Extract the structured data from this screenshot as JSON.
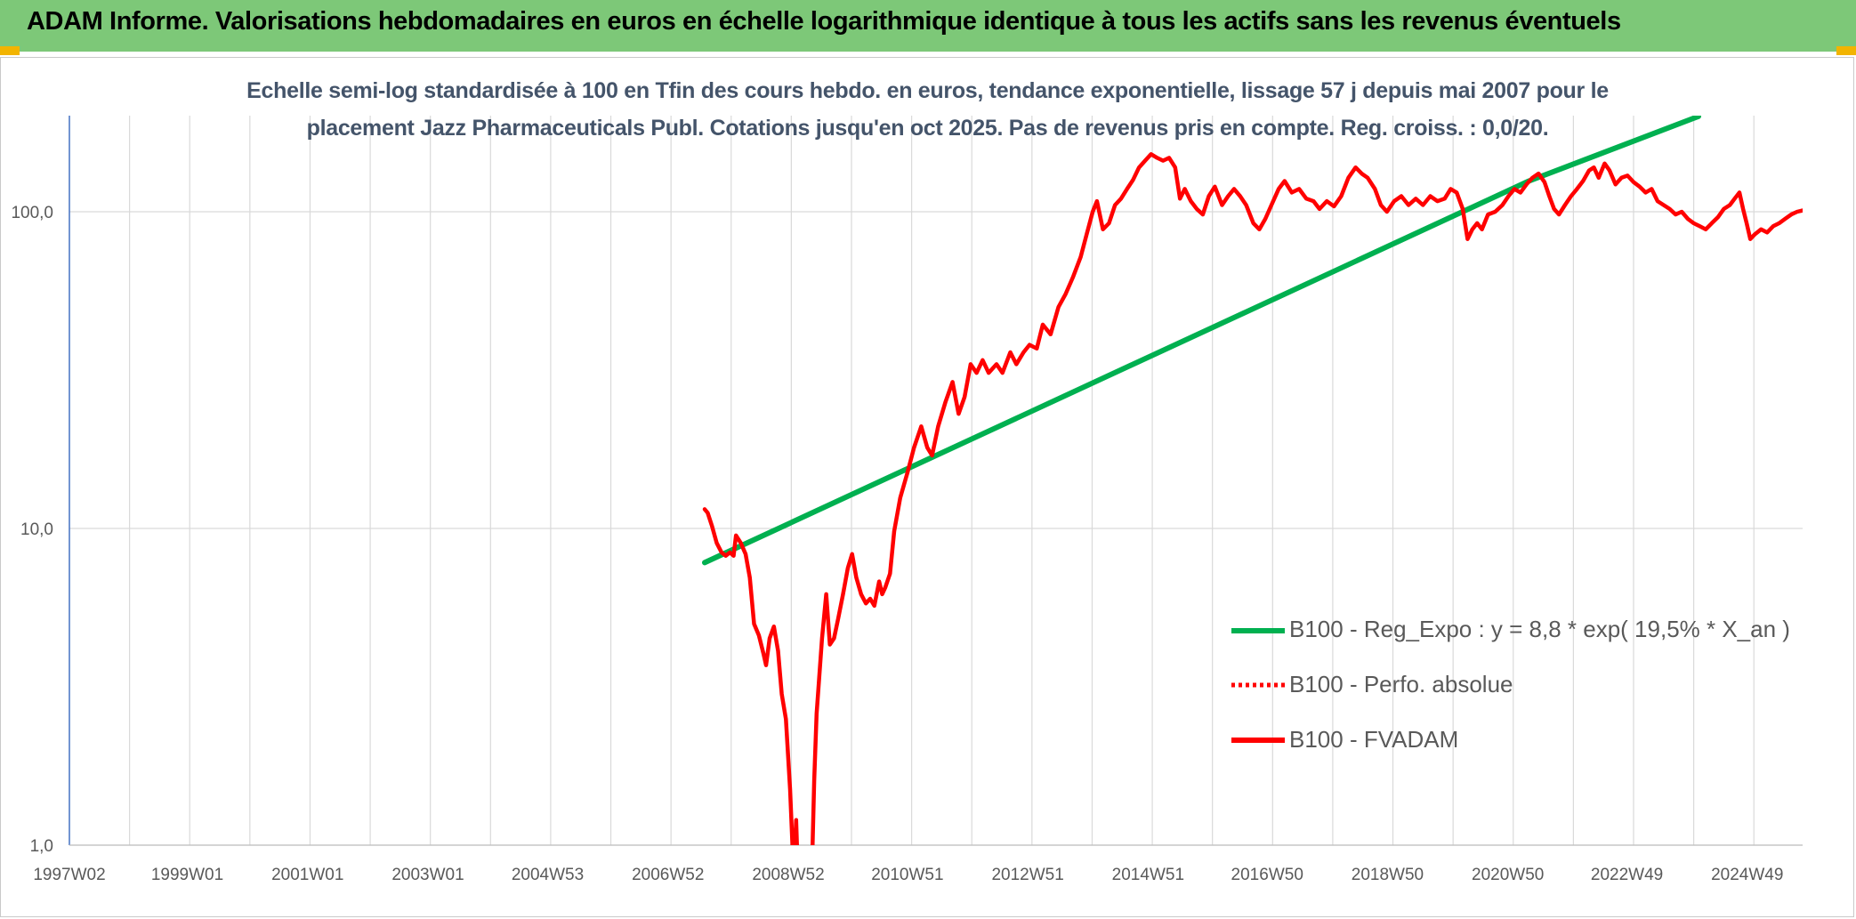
{
  "header": {
    "title": "ADAM Informe. Valorisations hebdomadaires en euros en échelle logarithmique identique à tous les actifs sans les revenus éventuels"
  },
  "colors": {
    "header_bg": "#7dc878",
    "corner_accent": "#f2b400",
    "trend_line": "#00b050",
    "fvadam_line": "#ff0000",
    "perf_line": "#ff0000",
    "grid": "#d9d9d9",
    "axis_text": "#595959",
    "subtitle_text": "#44546a"
  },
  "chart_data": {
    "type": "line",
    "title_line1": "Echelle semi-log standardisée à 100 en Tfin des cours hebdo. en euros, tendance exponentielle, lissage 57 j depuis mai 2007 pour le",
    "title_line2": "placement Jazz Pharmaceuticals Publ. Cotations jusqu'en oct 2025. Pas de revenus pris en compte. Reg. croiss. : 0,0/20.",
    "y_scale": "log",
    "ylim": [
      1,
      200
    ],
    "y_ticks": [
      {
        "value": 1,
        "label": "1,0"
      },
      {
        "value": 10,
        "label": "10,0"
      },
      {
        "value": 100,
        "label": "100,0"
      }
    ],
    "xlim": [
      1997.04,
      2025.85
    ],
    "x_tick_labels": [
      {
        "x": 1997.04,
        "label": "1997W02"
      },
      {
        "x": 1999.0,
        "label": "1999W01"
      },
      {
        "x": 2001.0,
        "label": "2001W01"
      },
      {
        "x": 2003.0,
        "label": "2003W01"
      },
      {
        "x": 2004.99,
        "label": "2004W53"
      },
      {
        "x": 2006.99,
        "label": "2006W52"
      },
      {
        "x": 2008.99,
        "label": "2008W52"
      },
      {
        "x": 2010.97,
        "label": "2010W51"
      },
      {
        "x": 2012.97,
        "label": "2012W51"
      },
      {
        "x": 2014.97,
        "label": "2014W51"
      },
      {
        "x": 2016.95,
        "label": "2016W50"
      },
      {
        "x": 2018.95,
        "label": "2018W50"
      },
      {
        "x": 2020.95,
        "label": "2020W50"
      },
      {
        "x": 2022.93,
        "label": "2022W49"
      },
      {
        "x": 2024.93,
        "label": "2024W49"
      }
    ],
    "gridlines": "vertical every year; horizontal at 1, 10, 100",
    "legend_placement": "bottom-right",
    "series": [
      {
        "name": "B100 - Reg_Expo : y = 8,8 * exp( 19,5% *  X_an )",
        "style": "solid-green",
        "points": [
          [
            2007.6,
            7.8
          ],
          [
            2021.3,
            125
          ],
          [
            2024.12,
            200
          ]
        ]
      },
      {
        "name": "B100 - Perfo. absolue",
        "style": "dotted-red",
        "points": []
      },
      {
        "name": "B100 - FVADAM",
        "style": "solid-red",
        "points": [
          [
            2007.6,
            11.5
          ],
          [
            2007.65,
            11.2
          ],
          [
            2007.72,
            10.2
          ],
          [
            2007.8,
            9.0
          ],
          [
            2007.88,
            8.4
          ],
          [
            2007.95,
            8.2
          ],
          [
            2008.02,
            8.4
          ],
          [
            2008.08,
            8.2
          ],
          [
            2008.12,
            9.5
          ],
          [
            2008.2,
            9.0
          ],
          [
            2008.28,
            8.3
          ],
          [
            2008.35,
            7.0
          ],
          [
            2008.42,
            5.0
          ],
          [
            2008.5,
            4.6
          ],
          [
            2008.58,
            4.0
          ],
          [
            2008.62,
            3.7
          ],
          [
            2008.68,
            4.5
          ],
          [
            2008.75,
            4.9
          ],
          [
            2008.82,
            4.1
          ],
          [
            2008.88,
            3.0
          ],
          [
            2008.95,
            2.5
          ],
          [
            2009.02,
            1.5
          ],
          [
            2009.08,
            0.8
          ],
          [
            2009.12,
            1.2
          ],
          [
            2009.16,
            0.7
          ],
          [
            2009.38,
            0.8
          ],
          [
            2009.42,
            1.6
          ],
          [
            2009.46,
            2.6
          ],
          [
            2009.55,
            4.5
          ],
          [
            2009.62,
            6.2
          ],
          [
            2009.68,
            4.3
          ],
          [
            2009.75,
            4.5
          ],
          [
            2009.82,
            5.2
          ],
          [
            2009.9,
            6.2
          ],
          [
            2009.98,
            7.5
          ],
          [
            2010.05,
            8.3
          ],
          [
            2010.12,
            7.0
          ],
          [
            2010.2,
            6.2
          ],
          [
            2010.28,
            5.8
          ],
          [
            2010.35,
            6.0
          ],
          [
            2010.42,
            5.7
          ],
          [
            2010.5,
            6.8
          ],
          [
            2010.55,
            6.2
          ],
          [
            2010.6,
            6.5
          ],
          [
            2010.68,
            7.2
          ],
          [
            2010.75,
            9.8
          ],
          [
            2010.85,
            12.5
          ],
          [
            2010.97,
            15
          ],
          [
            2011.08,
            18
          ],
          [
            2011.2,
            21
          ],
          [
            2011.3,
            18
          ],
          [
            2011.38,
            17
          ],
          [
            2011.48,
            21
          ],
          [
            2011.6,
            25
          ],
          [
            2011.72,
            29
          ],
          [
            2011.82,
            23
          ],
          [
            2011.92,
            26
          ],
          [
            2012.02,
            33
          ],
          [
            2012.12,
            31
          ],
          [
            2012.22,
            34
          ],
          [
            2012.32,
            31
          ],
          [
            2012.45,
            33
          ],
          [
            2012.55,
            31
          ],
          [
            2012.68,
            36
          ],
          [
            2012.78,
            33
          ],
          [
            2012.9,
            36
          ],
          [
            2013.0,
            38
          ],
          [
            2013.12,
            37
          ],
          [
            2013.22,
            44
          ],
          [
            2013.35,
            41
          ],
          [
            2013.48,
            50
          ],
          [
            2013.6,
            55
          ],
          [
            2013.72,
            62
          ],
          [
            2013.85,
            72
          ],
          [
            2013.95,
            85
          ],
          [
            2014.05,
            100
          ],
          [
            2014.12,
            108
          ],
          [
            2014.22,
            88
          ],
          [
            2014.32,
            92
          ],
          [
            2014.42,
            105
          ],
          [
            2014.52,
            110
          ],
          [
            2014.62,
            118
          ],
          [
            2014.72,
            126
          ],
          [
            2014.82,
            138
          ],
          [
            2014.92,
            145
          ],
          [
            2015.02,
            152
          ],
          [
            2015.12,
            148
          ],
          [
            2015.22,
            145
          ],
          [
            2015.32,
            148
          ],
          [
            2015.42,
            138
          ],
          [
            2015.5,
            110
          ],
          [
            2015.58,
            118
          ],
          [
            2015.68,
            108
          ],
          [
            2015.78,
            102
          ],
          [
            2015.88,
            98
          ],
          [
            2015.98,
            112
          ],
          [
            2016.08,
            120
          ],
          [
            2016.2,
            105
          ],
          [
            2016.3,
            112
          ],
          [
            2016.4,
            118
          ],
          [
            2016.5,
            112
          ],
          [
            2016.6,
            105
          ],
          [
            2016.72,
            92
          ],
          [
            2016.82,
            88
          ],
          [
            2016.92,
            95
          ],
          [
            2017.02,
            105
          ],
          [
            2017.14,
            118
          ],
          [
            2017.24,
            125
          ],
          [
            2017.36,
            115
          ],
          [
            2017.48,
            118
          ],
          [
            2017.6,
            110
          ],
          [
            2017.72,
            108
          ],
          [
            2017.82,
            102
          ],
          [
            2017.94,
            108
          ],
          [
            2018.06,
            104
          ],
          [
            2018.18,
            112
          ],
          [
            2018.3,
            128
          ],
          [
            2018.42,
            138
          ],
          [
            2018.52,
            132
          ],
          [
            2018.62,
            128
          ],
          [
            2018.74,
            118
          ],
          [
            2018.84,
            105
          ],
          [
            2018.94,
            100
          ],
          [
            2019.06,
            108
          ],
          [
            2019.18,
            112
          ],
          [
            2019.3,
            105
          ],
          [
            2019.42,
            110
          ],
          [
            2019.54,
            105
          ],
          [
            2019.66,
            112
          ],
          [
            2019.78,
            108
          ],
          [
            2019.9,
            110
          ],
          [
            2020.0,
            118
          ],
          [
            2020.1,
            115
          ],
          [
            2020.2,
            102
          ],
          [
            2020.28,
            82
          ],
          [
            2020.36,
            88
          ],
          [
            2020.44,
            92
          ],
          [
            2020.52,
            88
          ],
          [
            2020.62,
            98
          ],
          [
            2020.74,
            100
          ],
          [
            2020.86,
            105
          ],
          [
            2020.96,
            112
          ],
          [
            2021.06,
            118
          ],
          [
            2021.16,
            115
          ],
          [
            2021.26,
            122
          ],
          [
            2021.36,
            128
          ],
          [
            2021.46,
            132
          ],
          [
            2021.56,
            124
          ],
          [
            2021.64,
            112
          ],
          [
            2021.72,
            102
          ],
          [
            2021.8,
            98
          ],
          [
            2021.9,
            105
          ],
          [
            2022.0,
            112
          ],
          [
            2022.1,
            118
          ],
          [
            2022.2,
            125
          ],
          [
            2022.3,
            135
          ],
          [
            2022.38,
            138
          ],
          [
            2022.46,
            128
          ],
          [
            2022.56,
            142
          ],
          [
            2022.64,
            135
          ],
          [
            2022.74,
            122
          ],
          [
            2022.84,
            128
          ],
          [
            2022.94,
            130
          ],
          [
            2023.04,
            124
          ],
          [
            2023.14,
            120
          ],
          [
            2023.24,
            115
          ],
          [
            2023.34,
            118
          ],
          [
            2023.44,
            108
          ],
          [
            2023.54,
            105
          ],
          [
            2023.64,
            102
          ],
          [
            2023.74,
            98
          ],
          [
            2023.84,
            100
          ],
          [
            2023.94,
            95
          ],
          [
            2024.04,
            92
          ],
          [
            2024.14,
            90
          ],
          [
            2024.24,
            88
          ],
          [
            2024.34,
            92
          ],
          [
            2024.44,
            96
          ],
          [
            2024.54,
            102
          ],
          [
            2024.64,
            105
          ],
          [
            2024.72,
            110
          ],
          [
            2024.8,
            115
          ],
          [
            2024.86,
            102
          ],
          [
            2024.92,
            92
          ],
          [
            2024.98,
            82
          ],
          [
            2025.06,
            85
          ],
          [
            2025.16,
            88
          ],
          [
            2025.26,
            86
          ],
          [
            2025.36,
            90
          ],
          [
            2025.46,
            92
          ],
          [
            2025.56,
            95
          ],
          [
            2025.66,
            98
          ],
          [
            2025.76,
            100
          ],
          [
            2025.85,
            101
          ]
        ]
      }
    ]
  }
}
